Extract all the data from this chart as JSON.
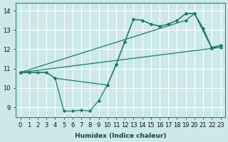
{
  "title": "",
  "xlabel": "Humidex (Indice chaleur)",
  "bg_color": "#cce8e8",
  "grid_color": "#ffffff",
  "line_color": "#1a7a6a",
  "x_ticks": [
    0,
    1,
    2,
    3,
    4,
    5,
    6,
    7,
    8,
    9,
    10,
    11,
    12,
    13,
    14,
    15,
    16,
    17,
    18,
    19,
    20,
    21,
    22,
    23
  ],
  "y_ticks": [
    9,
    10,
    11,
    12,
    13,
    14
  ],
  "xlim": [
    -0.5,
    23.5
  ],
  "ylim": [
    8.5,
    14.4
  ],
  "lines": [
    {
      "x": [
        0,
        1,
        2,
        3,
        4,
        5,
        6,
        7,
        8,
        9,
        10,
        11,
        12,
        13,
        14,
        15,
        16,
        17,
        18,
        19,
        20,
        21,
        22,
        23
      ],
      "y": [
        10.8,
        10.8,
        10.8,
        10.8,
        10.5,
        8.8,
        8.8,
        8.85,
        8.8,
        9.35,
        10.15,
        11.2,
        12.4,
        13.55,
        13.5,
        13.3,
        13.2,
        13.3,
        13.5,
        13.85,
        13.85,
        13.1,
        12.05,
        12.2
      ]
    },
    {
      "x": [
        0,
        23
      ],
      "y": [
        10.8,
        12.1
      ]
    },
    {
      "x": [
        0,
        3,
        4,
        10,
        11,
        12,
        13,
        14,
        15,
        16,
        17,
        18,
        19,
        20,
        22,
        23
      ],
      "y": [
        10.8,
        10.8,
        10.5,
        10.15,
        11.2,
        12.4,
        13.55,
        13.5,
        13.3,
        13.2,
        13.3,
        13.5,
        13.85,
        13.85,
        12.05,
        12.2
      ]
    },
    {
      "x": [
        0,
        19,
        20,
        22,
        23
      ],
      "y": [
        10.8,
        13.5,
        13.85,
        12.1,
        12.2
      ]
    }
  ]
}
